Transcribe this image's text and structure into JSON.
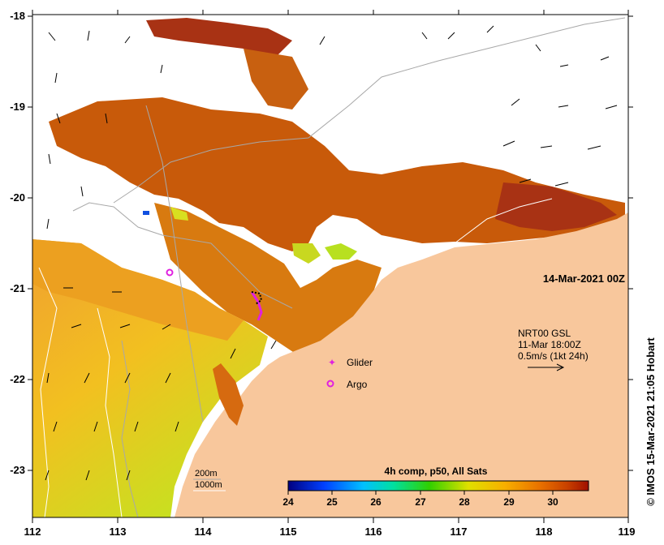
{
  "map": {
    "date_label": "14-Mar-2021 00Z",
    "lon_ticks": [
      "112",
      "113",
      "114",
      "115",
      "116",
      "117",
      "118",
      "119"
    ],
    "lat_ticks": [
      "-18",
      "-19",
      "-20",
      "-21",
      "-22",
      "-23"
    ],
    "lon_range": [
      112,
      119
    ],
    "lat_range": [
      -23.5,
      -18
    ],
    "credit": "© IMOS 15-Mar-2021 21:05 Hobart",
    "current_legend": {
      "line1": "NRT00 GSL",
      "line2": "11-Mar 18:00Z",
      "line3": "0.5m/s (1kt 24h)"
    },
    "markers": {
      "glider_label": "Glider",
      "argo_label": "Argo"
    },
    "depth_contours": {
      "shallow": "200m",
      "deep": "1000m"
    },
    "colorbar": {
      "title": "4h comp, p50, All Sats",
      "ticks": [
        "24",
        "25",
        "26",
        "27",
        "28",
        "29",
        "30"
      ],
      "range": [
        24,
        30.8
      ]
    },
    "colors": {
      "land": "#f8c79c",
      "sst_warm": "#c65300",
      "sst_hot": "#a8320f",
      "sst_mid": "#f0a000",
      "sst_cool": "#dede1e",
      "glider": "#e020e0",
      "argo": "#e020e0"
    }
  }
}
